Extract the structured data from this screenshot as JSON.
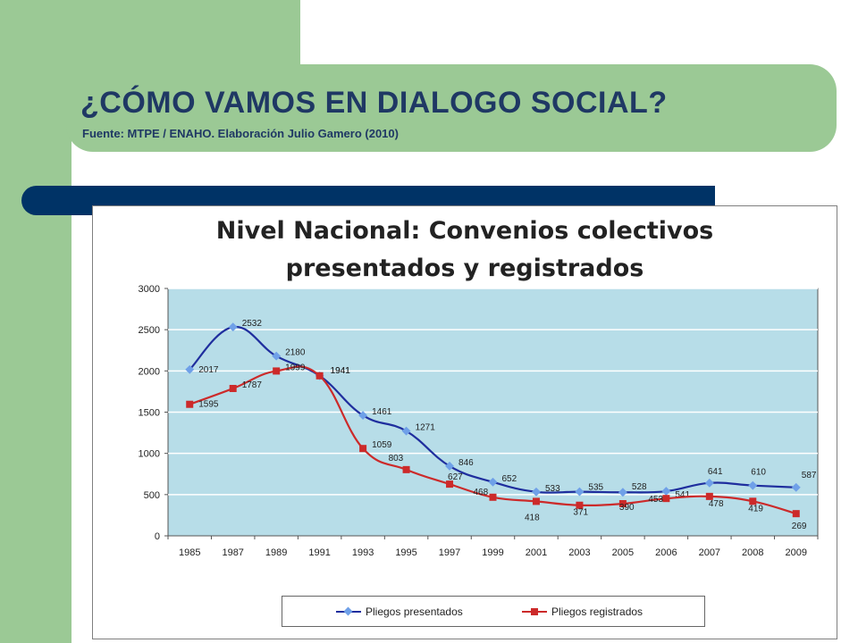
{
  "slide": {
    "title": "¿CÓMO VAMOS EN DIALOGO SOCIAL?",
    "subtitle": "Fuente: MTPE / ENAHO. Elaboración Julio Gamero (2010)"
  },
  "chart_data": {
    "type": "line",
    "title_line1": "Nivel Nacional: Convenios colectivos",
    "title_line2": "presentados y registrados",
    "categories": [
      "1985",
      "1987",
      "1989",
      "1991",
      "1993",
      "1995",
      "1997",
      "1999",
      "2001",
      "2003",
      "2005",
      "2006",
      "2007",
      "2008",
      "2009"
    ],
    "ylim": [
      0,
      3000
    ],
    "yticks": [
      0,
      500,
      1000,
      1500,
      2000,
      2500,
      3000
    ],
    "grid": true,
    "legend_position": "bottom",
    "series": [
      {
        "name": "Pliegos presentados",
        "color": "#1f2e9e",
        "marker": "diamond",
        "marker_color": "#6fa0e8",
        "values": [
          2017,
          2532,
          2180,
          1941,
          1461,
          1271,
          846,
          652,
          533,
          535,
          528,
          541,
          641,
          610,
          587
        ],
        "labels": [
          "2017",
          "2532",
          "2180",
          "1941",
          "1461",
          "1271",
          "846",
          "652",
          "533",
          "535",
          "528",
          "541",
          "641",
          "610",
          "587"
        ]
      },
      {
        "name": "Pliegos registrados",
        "color": "#cc2a2a",
        "marker": "square",
        "marker_color": "#cc2a2a",
        "values": [
          1595,
          1787,
          1999,
          1941,
          1059,
          803,
          627,
          468,
          418,
          371,
          390,
          453,
          478,
          419,
          269
        ],
        "labels": [
          "1595",
          "1787",
          "1999",
          "1941",
          "1059",
          "803",
          "627",
          "468",
          "418",
          "371",
          "390",
          "453",
          "478",
          "419",
          "269"
        ]
      }
    ]
  }
}
